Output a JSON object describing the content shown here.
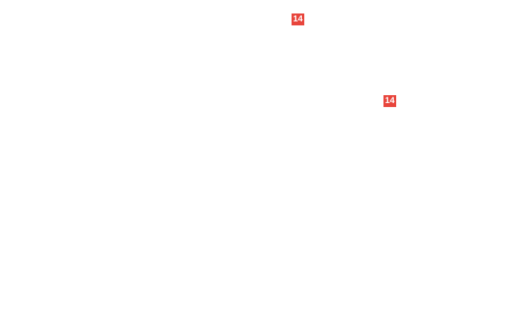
{
  "badges": [
    {
      "label": "14",
      "color": "#e8453c"
    },
    {
      "label": "14",
      "color": "#e8453c"
    }
  ]
}
